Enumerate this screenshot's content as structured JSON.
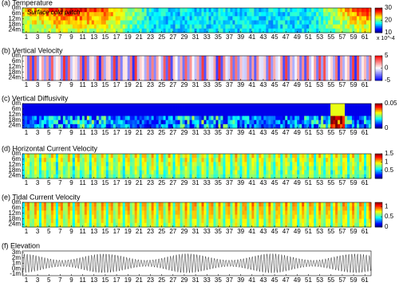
{
  "chart_data": {
    "type": "heatmap-panels",
    "xlim": [
      0.3,
      62.1
    ],
    "xticks": [
      1,
      3,
      5,
      7,
      9,
      11,
      13,
      15,
      17,
      19,
      21,
      23,
      25,
      27,
      29,
      31,
      33,
      35,
      37,
      39,
      41,
      43,
      45,
      47,
      49,
      51,
      53,
      55,
      57,
      59,
      61
    ],
    "annotation": "Surface cold patch",
    "multiplier": "x 10^-4",
    "panels": [
      {
        "title": "(a) Temperature",
        "colormap": "jet",
        "ylim": [
          0,
          27
        ],
        "yticks": [
          {
            "value": 0,
            "label": "0m"
          },
          {
            "value": 6,
            "label": "6m"
          },
          {
            "value": 12,
            "label": "12m"
          },
          {
            "value": 18,
            "label": "18m"
          },
          {
            "value": 24,
            "label": "24m"
          }
        ],
        "clim": [
          10,
          30
        ],
        "cticks": [
          30,
          20,
          10
        ]
      },
      {
        "title": "(b) Vertical Velocity",
        "colormap": "bwr",
        "ylim": [
          0,
          27
        ],
        "yticks": [
          {
            "value": 0,
            "label": "0m"
          },
          {
            "value": 6,
            "label": "6m"
          },
          {
            "value": 12,
            "label": "12m"
          },
          {
            "value": 18,
            "label": "18m"
          },
          {
            "value": 24,
            "label": "24m"
          }
        ],
        "clim": [
          -5,
          5
        ],
        "cticks": [
          5,
          0,
          -5
        ]
      },
      {
        "title": "(c) Vertical Diffusivity",
        "colormap": "jet",
        "ylim": [
          0,
          27
        ],
        "yticks": [
          {
            "value": 0,
            "label": "0m"
          },
          {
            "value": 6,
            "label": "6m"
          },
          {
            "value": 12,
            "label": "12m"
          },
          {
            "value": 18,
            "label": "18m"
          },
          {
            "value": 24,
            "label": "24m"
          }
        ],
        "clim": [
          0,
          0.05
        ],
        "cticks": [
          0.05,
          0
        ]
      },
      {
        "title": "(d) Horizontal Current Velocity",
        "colormap": "jet",
        "ylim": [
          0,
          27
        ],
        "yticks": [
          {
            "value": 0,
            "label": "0m"
          },
          {
            "value": 6,
            "label": "6m"
          },
          {
            "value": 12,
            "label": "12m"
          },
          {
            "value": 18,
            "label": "18m"
          },
          {
            "value": 24,
            "label": "24m"
          }
        ],
        "clim": [
          0,
          1.5
        ],
        "cticks": [
          1.5,
          1,
          0.5
        ]
      },
      {
        "title": "(e) Tidal Current Velocity",
        "colormap": "jet",
        "ylim": [
          0,
          27
        ],
        "yticks": [
          {
            "value": 0,
            "label": "0m"
          },
          {
            "value": 6,
            "label": "6m"
          },
          {
            "value": 12,
            "label": "12m"
          },
          {
            "value": 18,
            "label": "18m"
          },
          {
            "value": 24,
            "label": "24m"
          }
        ],
        "clim": [
          0,
          1.2
        ],
        "cticks": [
          1,
          0.5,
          0
        ]
      },
      {
        "title": "(f) Elevation",
        "colormap": "none",
        "ylim": [
          3.3,
          -1.3
        ],
        "yticks": [
          {
            "value": 3,
            "label": "3m"
          },
          {
            "value": 2,
            "label": "2m"
          },
          {
            "value": 1,
            "label": "1m"
          },
          {
            "value": 0,
            "label": "0m"
          },
          {
            "value": -1,
            "label": "-1m"
          }
        ]
      }
    ]
  }
}
